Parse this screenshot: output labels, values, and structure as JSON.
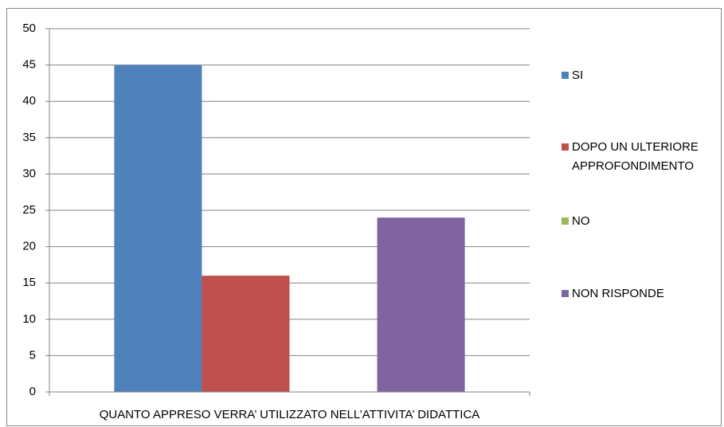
{
  "chart_data": {
    "type": "bar",
    "categories": [
      "QUANTO APPRESO VERRA’ UTILIZZATO NELL’ATTIVITA’ DIDATTICA"
    ],
    "series": [
      {
        "name": "SI",
        "color": "#4f81bd",
        "values": [
          45
        ]
      },
      {
        "name": "DOPO UN ULTERIORE APPROFONDIMENTO",
        "color": "#c0504d",
        "values": [
          16
        ]
      },
      {
        "name": "NO",
        "color": "#9bbb59",
        "values": [
          0
        ]
      },
      {
        "name": "NON RISPONDE",
        "color": "#8064a2",
        "values": [
          24
        ]
      }
    ],
    "ylim": [
      0,
      50
    ],
    "yticks": [
      0,
      5,
      10,
      15,
      20,
      25,
      30,
      35,
      40,
      45,
      50
    ],
    "grid": true,
    "legend": "right"
  }
}
